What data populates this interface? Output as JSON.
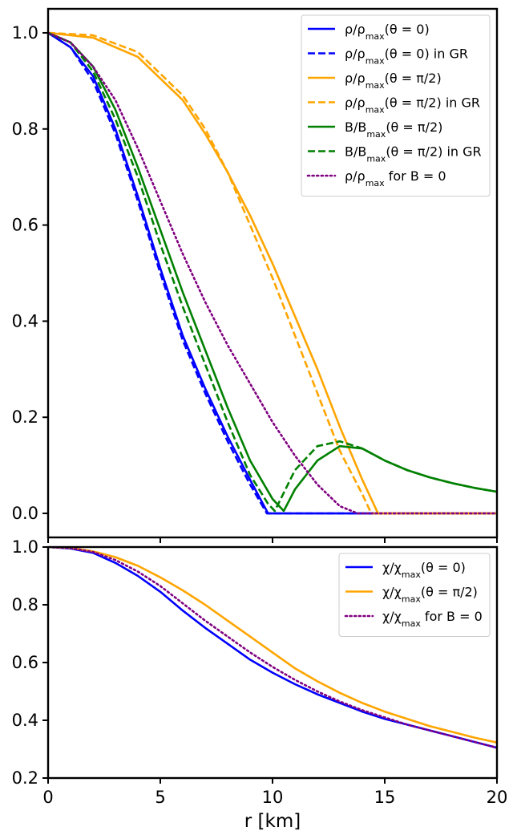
{
  "chart_data": [
    {
      "type": "line",
      "xlim": [
        0,
        20
      ],
      "ylim": [
        -0.05,
        1.05
      ],
      "yticks": [
        "0.0",
        "0.2",
        "0.4",
        "0.6",
        "0.8",
        "1.0"
      ],
      "grid": false,
      "legend": "top-right",
      "series": [
        {
          "name": "ρ/ρ_max(θ = 0)",
          "color": "#0000ff",
          "style": "solid",
          "x": [
            0,
            1,
            2,
            3,
            4,
            5,
            6,
            7,
            8,
            9,
            9.8,
            10.2,
            15,
            20
          ],
          "y": [
            1.0,
            0.97,
            0.91,
            0.8,
            0.66,
            0.51,
            0.37,
            0.26,
            0.16,
            0.07,
            0.0,
            0.0,
            0.0,
            0.0
          ]
        },
        {
          "name": "ρ/ρ_max(θ = 0) in GR",
          "color": "#0000ff",
          "style": "dashed",
          "x": [
            0,
            1,
            2,
            3,
            4,
            5,
            6,
            7,
            8,
            9,
            9.75,
            10.2,
            15,
            20
          ],
          "y": [
            1.0,
            0.97,
            0.9,
            0.79,
            0.65,
            0.5,
            0.36,
            0.25,
            0.15,
            0.06,
            0.0,
            0.0,
            0.0,
            0.0
          ]
        },
        {
          "name": "ρ/ρ_max(θ = π/2)",
          "color": "#ffa500",
          "style": "solid",
          "x": [
            0,
            2,
            4,
            6,
            7,
            8,
            9,
            10,
            11,
            12,
            13,
            14,
            14.7,
            16,
            20
          ],
          "y": [
            1.0,
            0.99,
            0.95,
            0.86,
            0.79,
            0.71,
            0.62,
            0.52,
            0.41,
            0.3,
            0.18,
            0.07,
            0.0,
            0.0,
            0.0
          ]
        },
        {
          "name": "ρ/ρ_max(θ = π/2) in GR",
          "color": "#ffa500",
          "style": "dashed",
          "x": [
            0,
            2,
            4,
            6,
            7,
            8,
            9,
            10,
            11,
            12,
            13,
            14,
            14.4,
            16,
            20
          ],
          "y": [
            1.0,
            0.995,
            0.96,
            0.87,
            0.8,
            0.71,
            0.6,
            0.49,
            0.37,
            0.25,
            0.13,
            0.04,
            0.0,
            0.0,
            0.0
          ]
        },
        {
          "name": "B/B_max(θ = π/2)",
          "color": "#008000",
          "style": "solid",
          "x": [
            0,
            1,
            2,
            3,
            4,
            5,
            6,
            7,
            8,
            9,
            10,
            10.5,
            11,
            12,
            13,
            14,
            15,
            16,
            17,
            18,
            19,
            20
          ],
          "y": [
            1.0,
            0.98,
            0.93,
            0.84,
            0.72,
            0.59,
            0.46,
            0.34,
            0.22,
            0.11,
            0.03,
            0.005,
            0.05,
            0.11,
            0.14,
            0.135,
            0.11,
            0.09,
            0.075,
            0.063,
            0.053,
            0.045
          ]
        },
        {
          "name": "B/B_max(θ = π/2) in GR",
          "color": "#008000",
          "style": "dashed",
          "x": [
            0,
            1,
            2,
            3,
            4,
            5,
            6,
            7,
            8,
            9,
            9.8,
            10.1,
            11,
            12,
            13,
            14,
            15,
            16,
            17,
            18,
            19,
            20
          ],
          "y": [
            1.0,
            0.98,
            0.92,
            0.82,
            0.7,
            0.56,
            0.43,
            0.31,
            0.19,
            0.08,
            0.02,
            0.005,
            0.09,
            0.14,
            0.15,
            0.135,
            0.11,
            0.09,
            0.075,
            0.063,
            0.053,
            0.045
          ]
        },
        {
          "name": "ρ/ρ_max for B = 0",
          "color": "#800080",
          "style": "dotted",
          "x": [
            0,
            1,
            2,
            3,
            4,
            5,
            6,
            7,
            8,
            9,
            10,
            11,
            12,
            13,
            13.8,
            15,
            20
          ],
          "y": [
            1.0,
            0.98,
            0.93,
            0.86,
            0.76,
            0.65,
            0.54,
            0.44,
            0.35,
            0.27,
            0.19,
            0.12,
            0.06,
            0.015,
            0.0,
            0.0,
            0.0
          ]
        }
      ]
    },
    {
      "type": "line",
      "xlim": [
        0,
        20
      ],
      "ylim": [
        0.2,
        1.0
      ],
      "xticks": [
        "0",
        "5",
        "10",
        "15",
        "20"
      ],
      "yticks": [
        "0.2",
        "0.4",
        "0.6",
        "0.8",
        "1.0"
      ],
      "xlabel": "r [km]",
      "grid": false,
      "legend": "top-right",
      "series": [
        {
          "name": "χ/χ_max(θ = 0)",
          "color": "#0000ff",
          "style": "solid",
          "x": [
            0,
            1,
            2,
            3,
            4,
            5,
            6,
            7,
            8,
            9,
            10,
            11,
            12,
            13,
            14,
            15,
            16,
            17,
            18,
            19,
            20
          ],
          "y": [
            1.0,
            0.995,
            0.98,
            0.945,
            0.9,
            0.845,
            0.78,
            0.72,
            0.665,
            0.61,
            0.565,
            0.525,
            0.49,
            0.46,
            0.43,
            0.405,
            0.385,
            0.365,
            0.345,
            0.325,
            0.305
          ]
        },
        {
          "name": "χ/χ_max(θ = π/2)",
          "color": "#ffa500",
          "style": "solid",
          "x": [
            0,
            1,
            2,
            3,
            4,
            5,
            6,
            7,
            8,
            9,
            10,
            11,
            12,
            13,
            14,
            15,
            16,
            17,
            18,
            19,
            20
          ],
          "y": [
            1.0,
            0.997,
            0.985,
            0.965,
            0.935,
            0.895,
            0.85,
            0.8,
            0.745,
            0.69,
            0.635,
            0.58,
            0.535,
            0.495,
            0.46,
            0.43,
            0.405,
            0.38,
            0.36,
            0.34,
            0.323
          ]
        },
        {
          "name": "χ/χ_max for B = 0",
          "color": "#800080",
          "style": "dotted",
          "x": [
            0,
            1,
            2,
            3,
            4,
            5,
            6,
            7,
            8,
            9,
            10,
            11,
            12,
            13,
            14,
            15,
            16,
            17,
            18,
            19,
            20
          ],
          "y": [
            1.0,
            0.996,
            0.983,
            0.955,
            0.915,
            0.865,
            0.805,
            0.745,
            0.69,
            0.635,
            0.585,
            0.54,
            0.5,
            0.465,
            0.435,
            0.41,
            0.385,
            0.365,
            0.345,
            0.325,
            0.305
          ]
        }
      ]
    }
  ]
}
